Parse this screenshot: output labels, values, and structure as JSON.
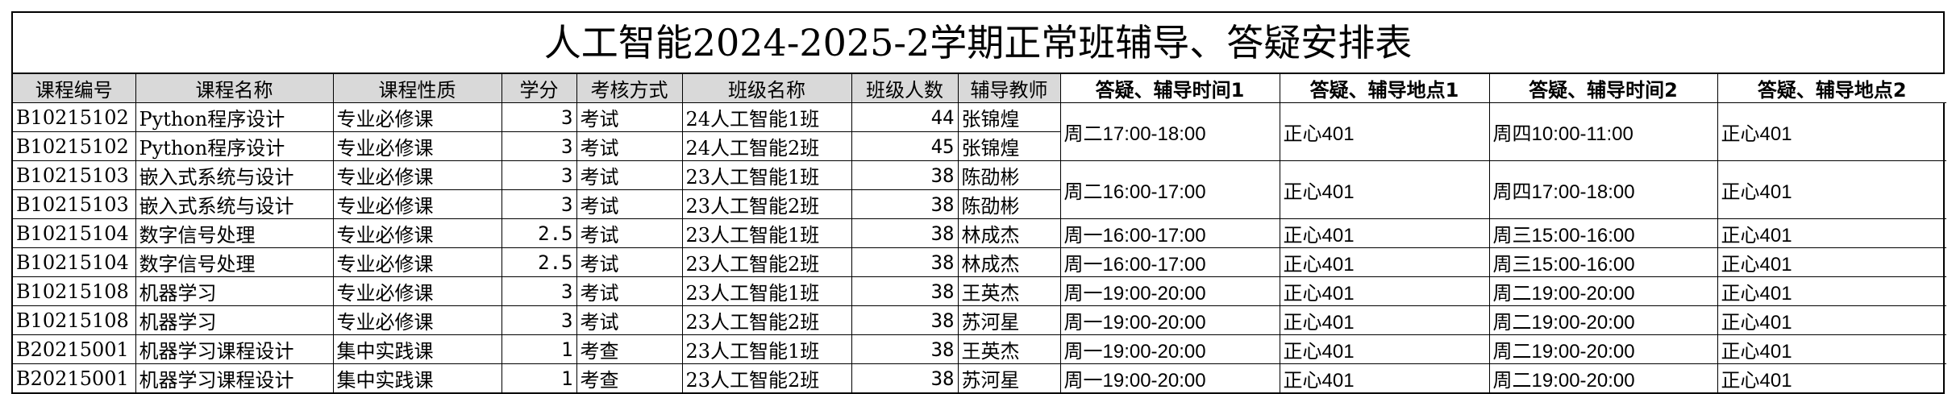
{
  "title": "人工智能2024-2025-2学期正常班辅导、答疑安排表",
  "headers": [
    "课程编号",
    "课程名称",
    "课程性质",
    "学分",
    "考核方式",
    "班级名称",
    "班级人数",
    "辅导教师",
    "答疑、辅导时间1",
    "答疑、辅导地点1",
    "答疑、辅导时间2",
    "答疑、辅导地点2"
  ],
  "rows": [
    {
      "code": "B10215102",
      "name": "Python程序设计",
      "nature": "专业必修课",
      "credit": "3",
      "exam": "考试",
      "class": "24人工智能1班",
      "count": "44",
      "teacher": "张锦煌"
    },
    {
      "code": "B10215102",
      "name": "Python程序设计",
      "nature": "专业必修课",
      "credit": "3",
      "exam": "考试",
      "class": "24人工智能2班",
      "count": "45",
      "teacher": "张锦煌"
    },
    {
      "code": "B10215103",
      "name": "嵌入式系统与设计",
      "nature": "专业必修课",
      "credit": "3",
      "exam": "考试",
      "class": "23人工智能1班",
      "count": "38",
      "teacher": "陈劭彬"
    },
    {
      "code": "B10215103",
      "name": "嵌入式系统与设计",
      "nature": "专业必修课",
      "credit": "3",
      "exam": "考试",
      "class": "23人工智能2班",
      "count": "38",
      "teacher": "陈劭彬"
    },
    {
      "code": "B10215104",
      "name": "数字信号处理",
      "nature": "专业必修课",
      "credit": "2.5",
      "exam": "考试",
      "class": "23人工智能1班",
      "count": "38",
      "teacher": "林成杰",
      "time1": "周一16:00-17:00",
      "place1": "正心401",
      "time2": "周三15:00-16:00",
      "place2": "正心401"
    },
    {
      "code": "B10215104",
      "name": "数字信号处理",
      "nature": "专业必修课",
      "credit": "2.5",
      "exam": "考试",
      "class": "23人工智能2班",
      "count": "38",
      "teacher": "林成杰",
      "time1": "周一16:00-17:00",
      "place1": "正心401",
      "time2": "周三15:00-16:00",
      "place2": "正心401"
    },
    {
      "code": "B10215108",
      "name": "机器学习",
      "nature": "专业必修课",
      "credit": "3",
      "exam": "考试",
      "class": "23人工智能1班",
      "count": "38",
      "teacher": "王英杰",
      "time1": "周一19:00-20:00",
      "place1": "正心401",
      "time2": "周二19:00-20:00",
      "place2": "正心401"
    },
    {
      "code": "B10215108",
      "name": "机器学习",
      "nature": "专业必修课",
      "credit": "3",
      "exam": "考试",
      "class": "23人工智能2班",
      "count": "38",
      "teacher": "苏河星",
      "time1": "周一19:00-20:00",
      "place1": "正心401",
      "time2": "周二19:00-20:00",
      "place2": "正心401"
    },
    {
      "code": "B20215001",
      "name": "机器学习课程设计",
      "nature": "集中实践课",
      "credit": "1",
      "exam": "考查",
      "class": "23人工智能1班",
      "count": "38",
      "teacher": "王英杰",
      "time1": "周一19:00-20:00",
      "place1": "正心401",
      "time2": "周二19:00-20:00",
      "place2": "正心401"
    },
    {
      "code": "B20215001",
      "name": "机器学习课程设计",
      "nature": "集中实践课",
      "credit": "1",
      "exam": "考查",
      "class": "23人工智能2班",
      "count": "38",
      "teacher": "苏河星",
      "time1": "周一19:00-20:00",
      "place1": "正心401",
      "time2": "周二19:00-20:00",
      "place2": "正心401"
    }
  ],
  "merged": [
    {
      "time1": "周二17:00-18:00",
      "place1": "正心401",
      "time2": "周四10:00-11:00",
      "place2": "正心401"
    },
    {
      "time1": "周二16:00-17:00",
      "place1": "正心401",
      "time2": "周四17:00-18:00",
      "place2": "正心401"
    }
  ]
}
